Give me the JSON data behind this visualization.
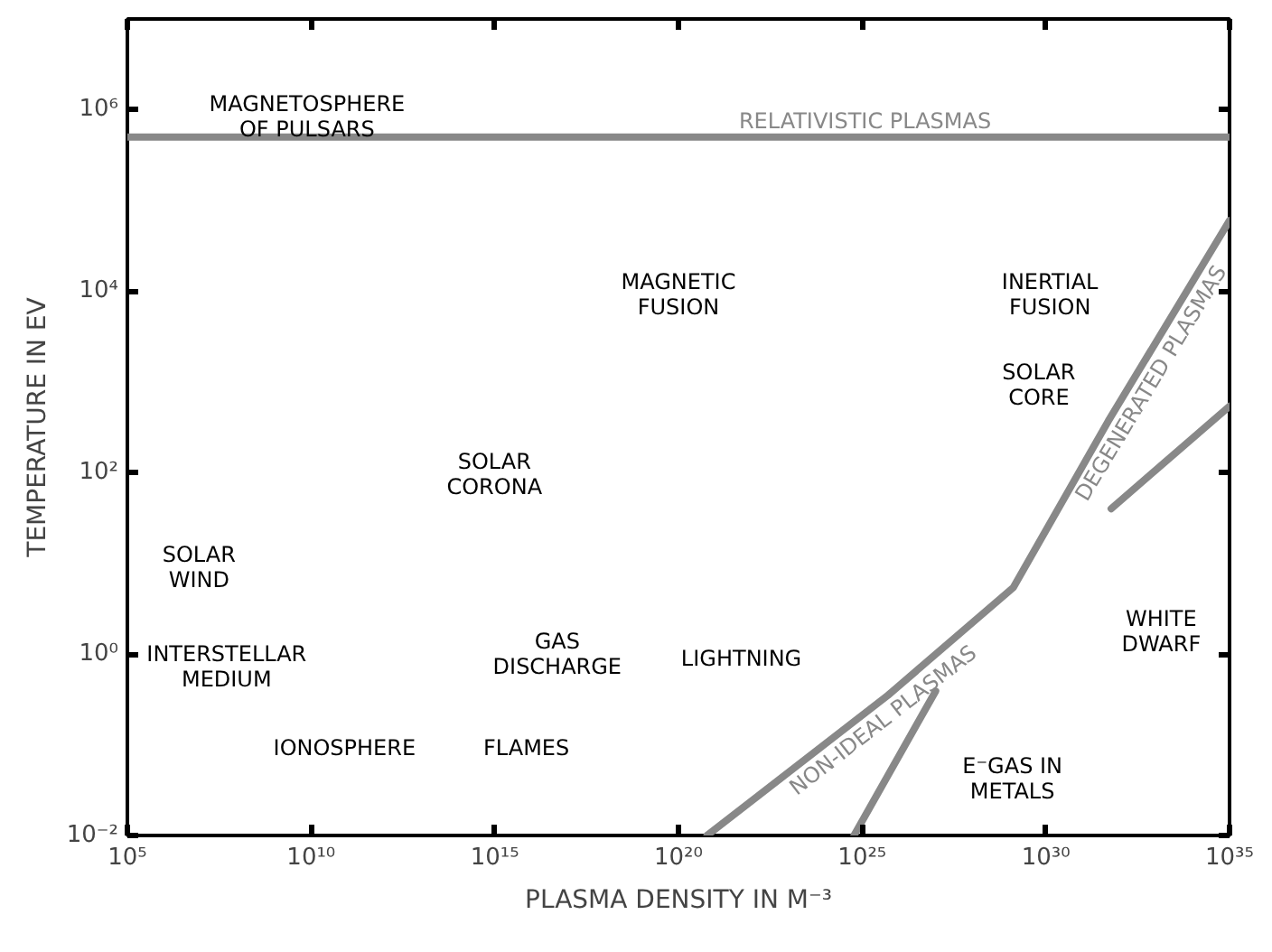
{
  "chart_data": {
    "type": "line",
    "xlabel": "PLASMA DENSITY IN M⁻³",
    "ylabel": "TEMPERATURE IN EV",
    "log": "xy",
    "grid": false,
    "marker": "none",
    "line_style": "solid",
    "xlim": [
      100000.0,
      1e+35
    ],
    "ylim": [
      0.01,
      10000000.0
    ],
    "xticks": [
      {
        "value": 100000.0,
        "label": "10⁵"
      },
      {
        "value": 10000000000.0,
        "label": "10¹⁰"
      },
      {
        "value": 1000000000000000.0,
        "label": "10¹⁵"
      },
      {
        "value": 1e+20,
        "label": "10²⁰"
      },
      {
        "value": 1e+25,
        "label": "10²⁵"
      },
      {
        "value": 1e+30,
        "label": "10³⁰"
      },
      {
        "value": 1e+35,
        "label": "10³⁵"
      }
    ],
    "yticks": [
      {
        "value": 0.01,
        "label": "10⁻²"
      },
      {
        "value": 1,
        "label": "10⁰"
      },
      {
        "value": 100,
        "label": "10²"
      },
      {
        "value": 10000,
        "label": "10⁴"
      },
      {
        "value": 1000000,
        "label": "10⁶"
      }
    ],
    "series": [
      {
        "color": "#888888",
        "x": [
          100000.0,
          1e+35
        ],
        "values": [
          500000,
          500000
        ]
      },
      {
        "color": "#888888",
        "x": [
          6e+20,
          5e+25,
          1.3e+29,
          5e+31,
          1e+35
        ],
        "values": [
          0.01,
          0.35,
          5.4,
          370,
          60000
        ]
      },
      {
        "color": "#888888",
        "x": [
          6e+31,
          1e+35
        ],
        "values": [
          40,
          540
        ]
      },
      {
        "color": "#888888",
        "x": [
          6e+24,
          1e+27
        ],
        "values": [
          0.01,
          0.39
        ]
      }
    ],
    "annotations": [
      "MAGNETOSPHERE\nOF PULSARS",
      {
        "text": "RELATIVISTIC PLASMAS",
        "x": 1.2e+25,
        "y": 500000
      },
      "MAGNETIC\nFUSION",
      "INERTIAL\nFUSION",
      "SOLAR\nCORE",
      "SOLAR\nCORONA",
      "SOLAR\nWIND",
      "INTERSTELLAR\nMEDIUM",
      "GAS\nDISCHARGE",
      "LIGHTNING",
      "WHITE\nDWARF",
      "IONOSPHERE",
      "FLAMES",
      "E⁻GAS IN\nMETALS",
      {
        "text": "NON-IDEAL PLASMAS",
        "x": 2e+25,
        "y": 0.26
      },
      {
        "text": "DEGENERATED PLASMAS",
        "x": 3e+32,
        "y": 1200
      }
    ]
  }
}
